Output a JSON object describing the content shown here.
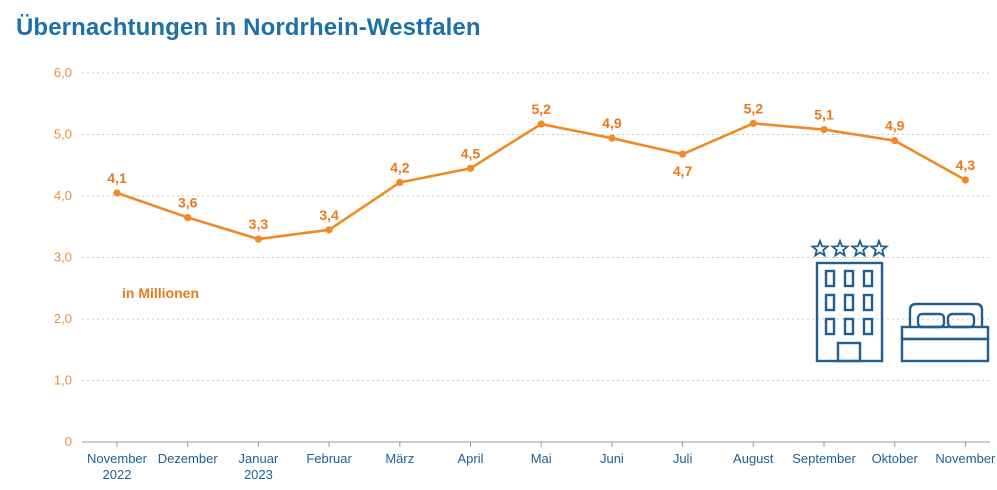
{
  "chart_data": {
    "type": "line",
    "title": "Übernachtungen in Nordrhein-Westfalen",
    "unit_label": "in Millionen",
    "categories": [
      [
        "November",
        "2022"
      ],
      [
        "Dezember"
      ],
      [
        "Januar",
        "2023"
      ],
      [
        "Februar"
      ],
      [
        "März"
      ],
      [
        "April"
      ],
      [
        "Mai"
      ],
      [
        "Juni"
      ],
      [
        "Juli"
      ],
      [
        "August"
      ],
      [
        "September"
      ],
      [
        "Oktober"
      ],
      [
        "November"
      ]
    ],
    "values": [
      4.05,
      3.65,
      3.3,
      3.45,
      4.22,
      4.45,
      5.17,
      4.94,
      4.68,
      5.18,
      5.08,
      4.9,
      4.26
    ],
    "data_labels": [
      "4,1",
      "3,6",
      "3,3",
      "3,4",
      "4,2",
      "4,5",
      "5,2",
      "4,9",
      "4,7",
      "5,2",
      "5,1",
      "4,9",
      "4,3"
    ],
    "label_positions": [
      "above",
      "above",
      "above",
      "above",
      "above",
      "above",
      "above",
      "above",
      "below",
      "above",
      "above",
      "above",
      "above"
    ],
    "yticks": [
      0,
      1,
      2,
      3,
      4,
      5,
      6
    ],
    "ytick_labels": [
      "0",
      "1,0",
      "2,0",
      "3,0",
      "4,0",
      "5,0",
      "6,0"
    ],
    "ylim": [
      0,
      6
    ],
    "grid": true,
    "line_color": "#f08a24",
    "text_color": "#e8791f",
    "axis_label_color": "#1f5f94",
    "icon_color": "#1f5f94",
    "icons": [
      "hotel-building-icon",
      "four-stars-icon",
      "double-bed-icon"
    ]
  }
}
